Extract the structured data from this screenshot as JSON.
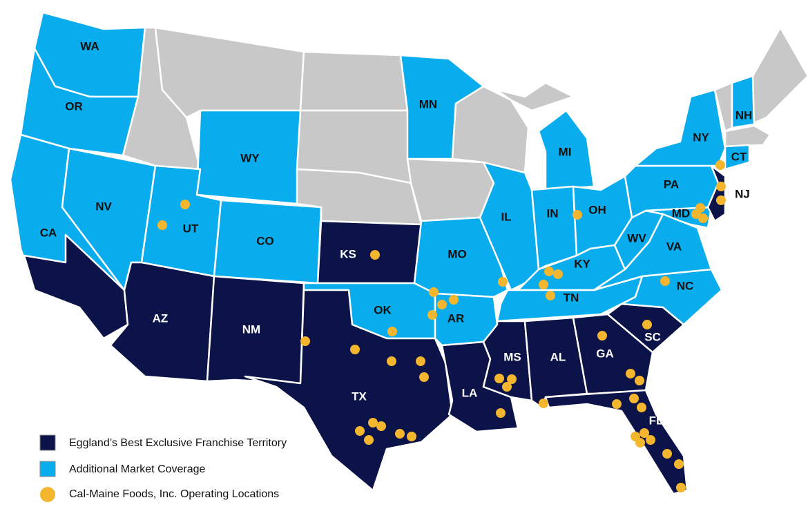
{
  "state_labels": [
    "WA",
    "OR",
    "CA",
    "NV",
    "UT",
    "WY",
    "CO",
    "AZ",
    "NM",
    "KS",
    "OK",
    "TX",
    "MN",
    "MO",
    "AR",
    "LA",
    "IL",
    "IN",
    "OH",
    "MI",
    "KY",
    "TN",
    "MS",
    "AL",
    "GA",
    "SC",
    "FL",
    "NC",
    "VA",
    "WV",
    "PA",
    "NY",
    "NH",
    "CT",
    "MD",
    "NJ"
  ],
  "legend": [
    "Eggland’s Best Exclusive Franchise Territory",
    "Additional Market Coverage",
    "Cal-Maine Foods, Inc. Operating Locations"
  ]
}
